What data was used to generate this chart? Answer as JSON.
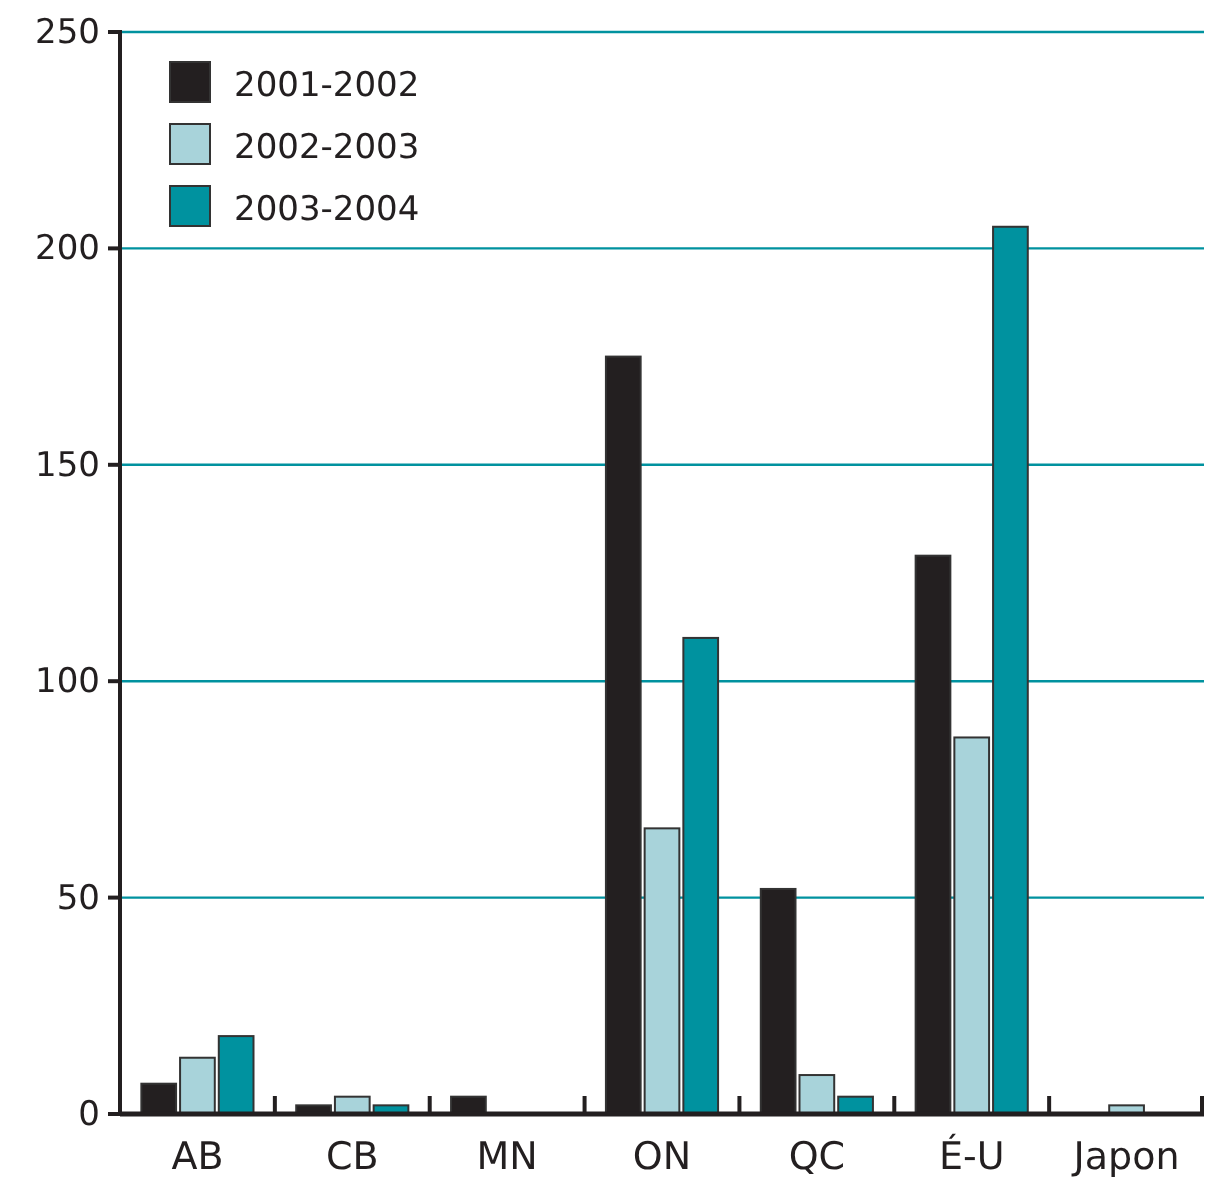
{
  "chart_data": {
    "type": "bar",
    "categories": [
      "AB",
      "CB",
      "MN",
      "ON",
      "QC",
      "É-U",
      "Japon"
    ],
    "series": [
      {
        "name": "2001-2002",
        "color": "#231f20",
        "values": [
          7,
          2,
          4,
          175,
          52,
          129,
          0
        ]
      },
      {
        "name": "2002-2003",
        "color": "#a8d3da",
        "values": [
          13,
          4,
          0,
          66,
          9,
          87,
          2
        ]
      },
      {
        "name": "2003-2004",
        "color": "#00929f",
        "values": [
          18,
          2,
          0,
          110,
          4,
          205,
          0
        ]
      }
    ],
    "ylim": [
      0,
      250
    ],
    "yticks": [
      0,
      50,
      100,
      150,
      200,
      250
    ],
    "grid": "y",
    "legend": "top left"
  }
}
